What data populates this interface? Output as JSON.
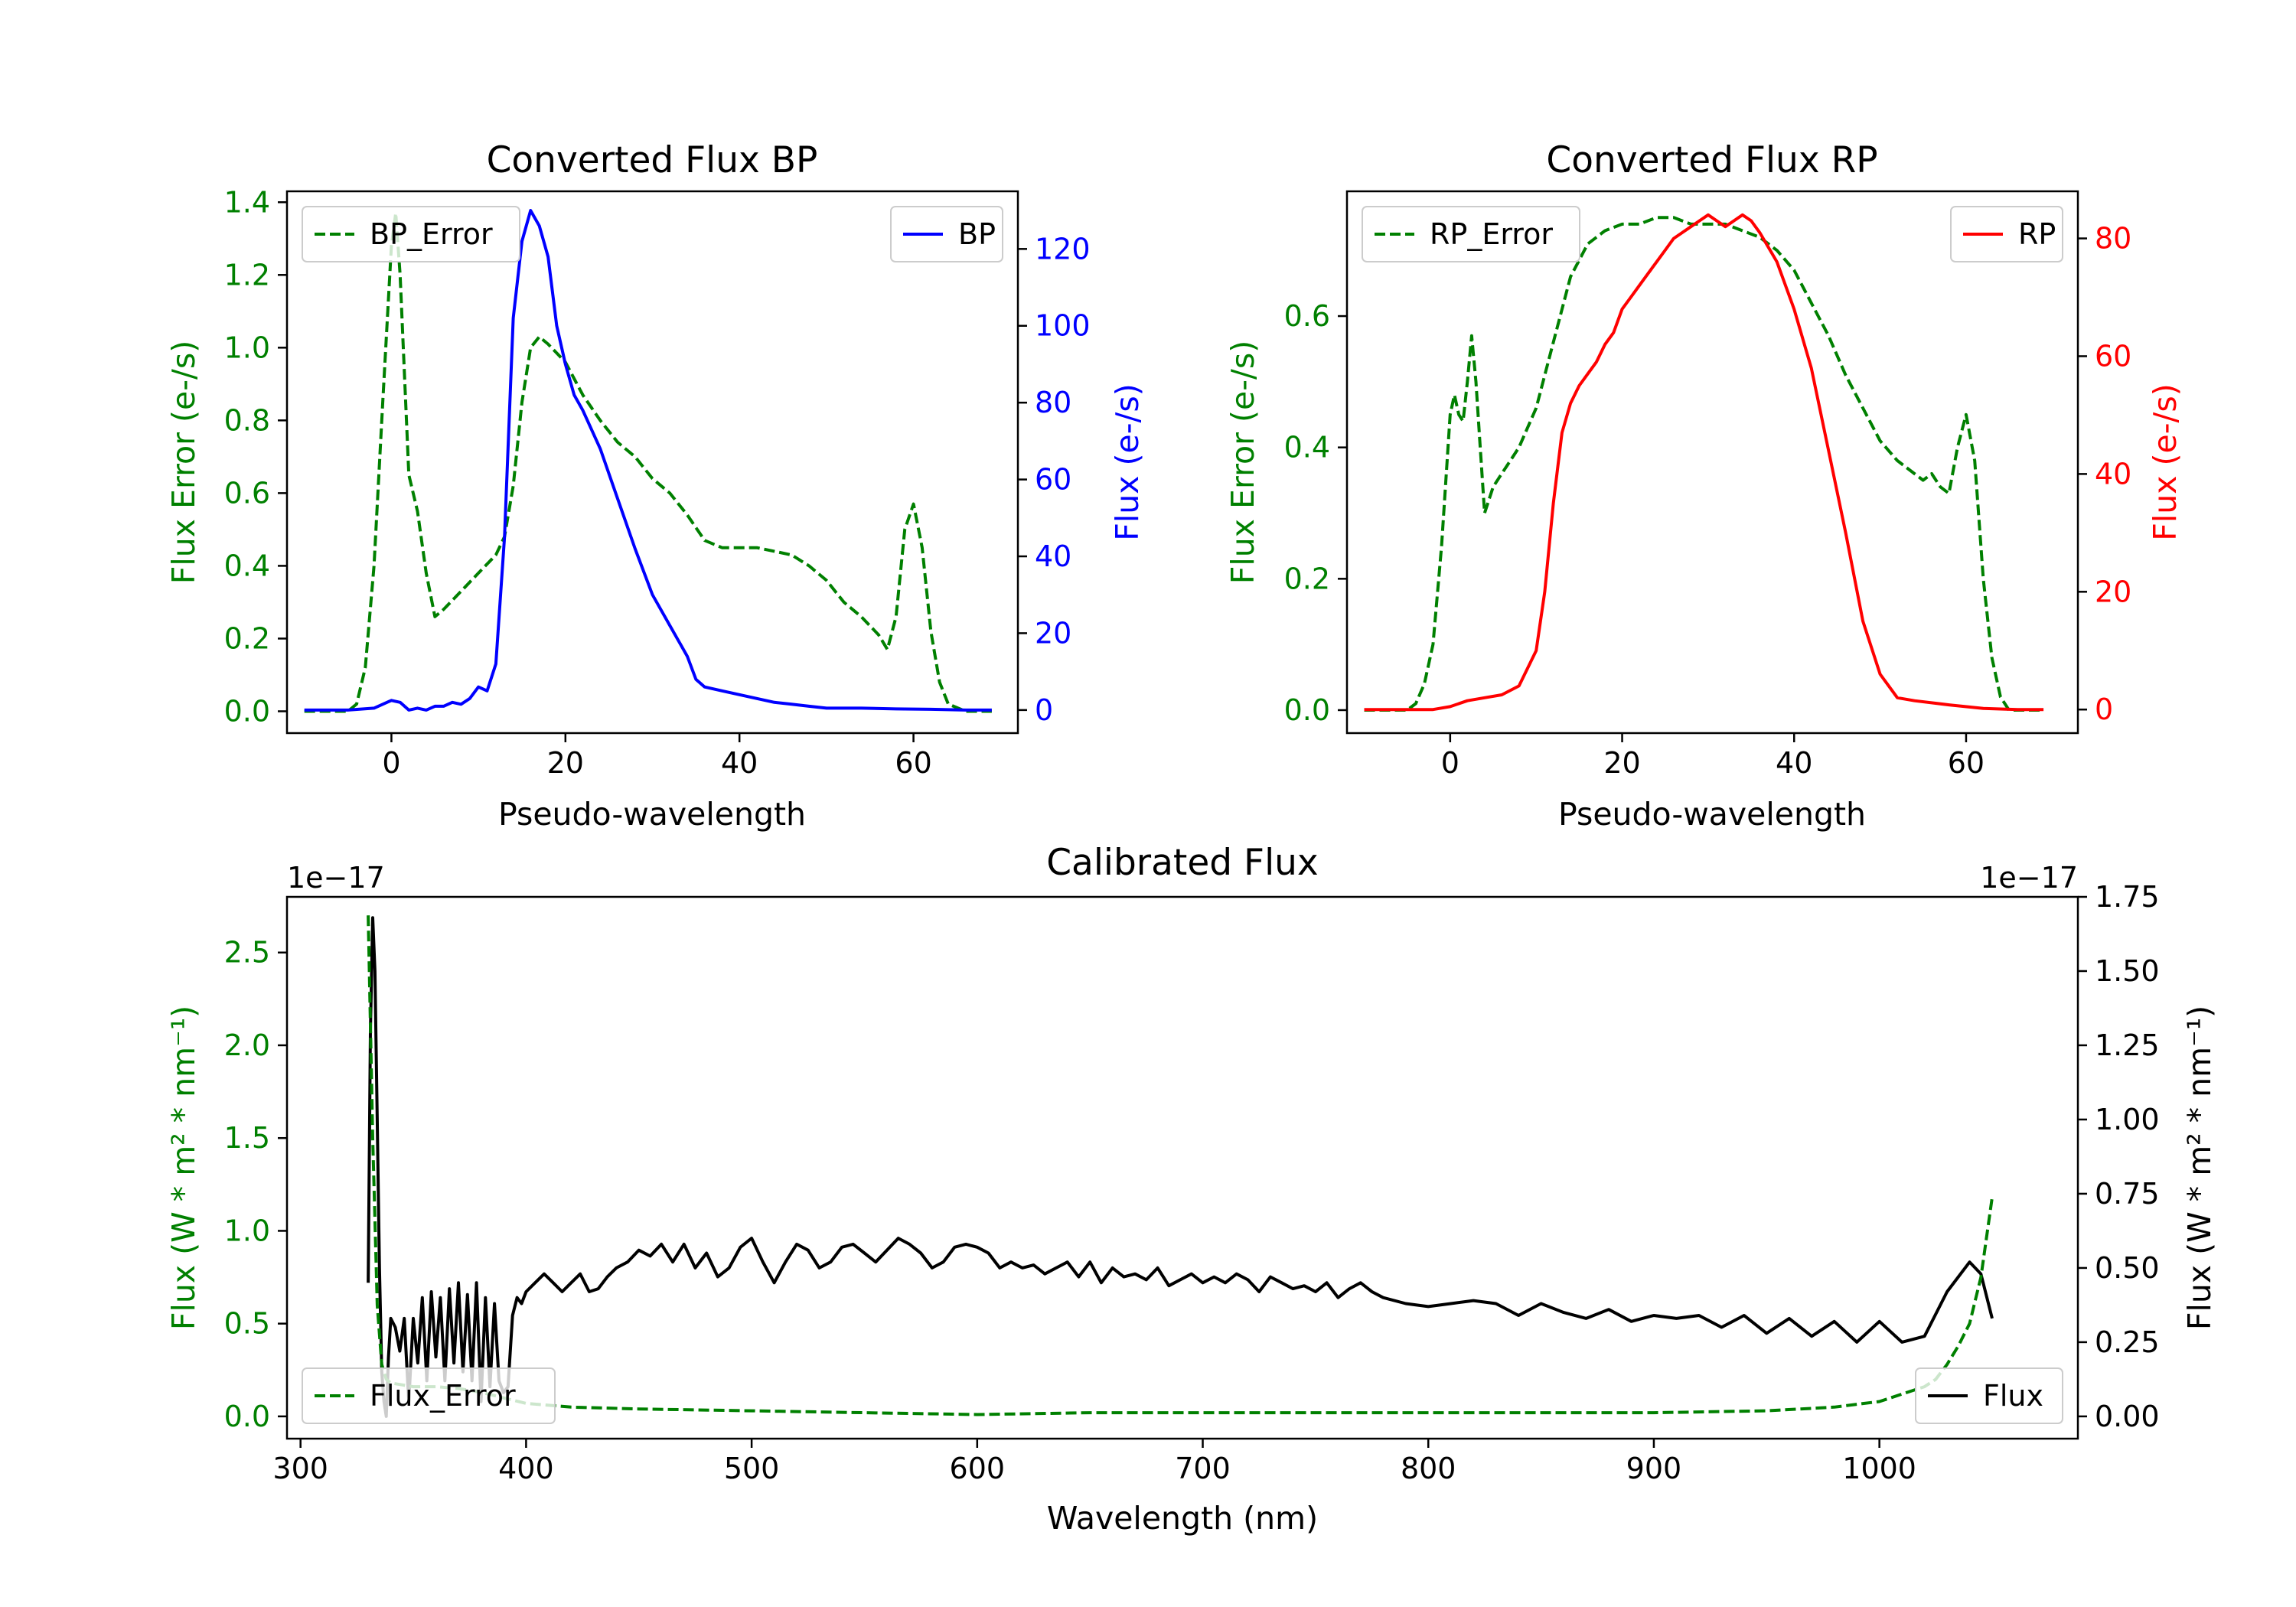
{
  "colors": {
    "green": "#008000",
    "blue": "#0000ff",
    "red": "#ff0000",
    "black": "#000000"
  },
  "chart_data": [
    {
      "id": "bp",
      "type": "line",
      "title": "Converted Flux BP",
      "xlabel": "Pseudo-wavelength",
      "ylabel_left": "Flux Error (e-/s)",
      "ylabel_right": "Flux (e-/s)",
      "xlim": [
        -12,
        72
      ],
      "ylim_left": [
        -0.06,
        1.43
      ],
      "ylim_right": [
        -6,
        135
      ],
      "xticks": [
        0,
        20,
        40,
        60
      ],
      "yticks_left": [
        0.0,
        0.2,
        0.4,
        0.6,
        0.8,
        1.0,
        1.2,
        1.4
      ],
      "yticks_right": [
        0,
        20,
        40,
        60,
        80,
        100,
        120
      ],
      "legend_left": "top-left",
      "legend_right": "top-right",
      "series": [
        {
          "name": "BP_Error",
          "axis": "left",
          "color": "green",
          "style": "dashed",
          "x": [
            -10,
            -5,
            -4,
            -3,
            -2,
            -1,
            0,
            0.5,
            1,
            2,
            3,
            4,
            5,
            6,
            8,
            10,
            12,
            13,
            14,
            15,
            16,
            17,
            18,
            20,
            22,
            24,
            26,
            28,
            30,
            32,
            34,
            36,
            38,
            40,
            42,
            44,
            46,
            48,
            50,
            52,
            54,
            56,
            57,
            58,
            59,
            60,
            61,
            62,
            63,
            64,
            66,
            69
          ],
          "y": [
            0,
            0,
            0.02,
            0.12,
            0.4,
            0.85,
            1.28,
            1.37,
            1.2,
            0.65,
            0.55,
            0.38,
            0.26,
            0.28,
            0.33,
            0.38,
            0.43,
            0.48,
            0.62,
            0.85,
            1.0,
            1.03,
            1.01,
            0.96,
            0.87,
            0.8,
            0.74,
            0.7,
            0.64,
            0.6,
            0.54,
            0.47,
            0.45,
            0.45,
            0.45,
            0.44,
            0.43,
            0.4,
            0.36,
            0.3,
            0.26,
            0.21,
            0.17,
            0.26,
            0.5,
            0.57,
            0.45,
            0.22,
            0.08,
            0.02,
            0,
            0
          ]
        },
        {
          "name": "BP",
          "axis": "right",
          "color": "blue",
          "style": "solid",
          "x": [
            -10,
            -5,
            -2,
            0,
            1,
            2,
            3,
            4,
            5,
            6,
            7,
            8,
            9,
            10,
            11,
            12,
            13,
            14,
            15,
            16,
            17,
            18,
            19,
            20,
            21,
            22,
            24,
            26,
            28,
            30,
            32,
            34,
            35,
            36,
            38,
            40,
            42,
            44,
            46,
            48,
            50,
            54,
            58,
            62,
            66,
            69
          ],
          "y": [
            0,
            0,
            0.5,
            2.5,
            2,
            0,
            0.5,
            0,
            1,
            1,
            2,
            1.5,
            3,
            6,
            5,
            12,
            45,
            102,
            122,
            130,
            126,
            118,
            100,
            90,
            82,
            78,
            68,
            55,
            42,
            30,
            22,
            14,
            8,
            6,
            5,
            4,
            3,
            2,
            1.5,
            1,
            0.5,
            0.5,
            0.3,
            0.2,
            0,
            0
          ]
        }
      ]
    },
    {
      "id": "rp",
      "type": "line",
      "title": "Converted Flux RP",
      "xlabel": "Pseudo-wavelength",
      "ylabel_left": "Flux Error (e-/s)",
      "ylabel_right": "Flux (e-/s)",
      "xlim": [
        -12,
        73
      ],
      "ylim_left": [
        -0.035,
        0.79
      ],
      "ylim_right": [
        -4,
        88
      ],
      "xticks": [
        0,
        20,
        40,
        60
      ],
      "yticks_left": [
        0.0,
        0.2,
        0.4,
        0.6
      ],
      "yticks_right": [
        0,
        20,
        40,
        60,
        80
      ],
      "legend_left": "top-left",
      "legend_right": "top-right",
      "series": [
        {
          "name": "RP_Error",
          "axis": "left",
          "color": "green",
          "style": "dashed",
          "x": [
            -10,
            -5,
            -4,
            -3,
            -2,
            -1,
            0,
            0.5,
            1,
            1.5,
            2,
            2.5,
            3,
            3.5,
            4,
            5,
            6,
            7,
            8,
            10,
            12,
            14,
            16,
            18,
            20,
            22,
            24,
            26,
            28,
            30,
            32,
            34,
            36,
            38,
            40,
            42,
            44,
            46,
            48,
            50,
            52,
            54,
            55,
            56,
            57,
            58,
            59,
            60,
            61,
            62,
            63,
            64,
            65,
            69
          ],
          "y": [
            0,
            0,
            0.01,
            0.04,
            0.1,
            0.25,
            0.45,
            0.48,
            0.45,
            0.44,
            0.5,
            0.57,
            0.5,
            0.4,
            0.3,
            0.34,
            0.36,
            0.38,
            0.4,
            0.46,
            0.56,
            0.66,
            0.71,
            0.73,
            0.74,
            0.74,
            0.75,
            0.75,
            0.74,
            0.74,
            0.74,
            0.73,
            0.72,
            0.7,
            0.67,
            0.62,
            0.57,
            0.51,
            0.46,
            0.41,
            0.38,
            0.36,
            0.35,
            0.36,
            0.34,
            0.33,
            0.4,
            0.45,
            0.38,
            0.2,
            0.08,
            0.02,
            0,
            0
          ]
        },
        {
          "name": "RP",
          "axis": "right",
          "color": "red",
          "style": "solid",
          "x": [
            -10,
            -5,
            -2,
            0,
            2,
            4,
            6,
            8,
            10,
            11,
            12,
            13,
            14,
            15,
            16,
            17,
            18,
            19,
            20,
            21,
            22,
            23,
            24,
            25,
            26,
            27,
            28,
            29,
            30,
            31,
            32,
            33,
            34,
            35,
            36,
            38,
            40,
            42,
            44,
            46,
            48,
            50,
            52,
            54,
            58,
            62,
            66,
            69
          ],
          "y": [
            0,
            0,
            0,
            0.5,
            1.5,
            2,
            2.5,
            4,
            10,
            20,
            35,
            47,
            52,
            55,
            57,
            59,
            62,
            64,
            68,
            70,
            72,
            74,
            76,
            78,
            80,
            81,
            82,
            83,
            84,
            83,
            82,
            83,
            84,
            83,
            81,
            76,
            68,
            58,
            44,
            30,
            15,
            6,
            2,
            1.5,
            0.8,
            0.2,
            0,
            0
          ]
        }
      ]
    },
    {
      "id": "cal",
      "type": "line",
      "title": "Calibrated Flux",
      "xlabel": "Wavelength (nm)",
      "ylabel_left": "Flux (W * m² * nm⁻¹)",
      "ylabel_right": "Flux (W * m² * nm⁻¹)",
      "offset_left": "1e−17",
      "offset_right": "1e−17",
      "xlim": [
        294,
        1088
      ],
      "ylim_left": [
        -0.12,
        2.8
      ],
      "ylim_right": [
        -0.075,
        1.75
      ],
      "xticks": [
        300,
        400,
        500,
        600,
        700,
        800,
        900,
        1000
      ],
      "yticks_left": [
        0.0,
        0.5,
        1.0,
        1.5,
        2.0,
        2.5
      ],
      "yticks_right": [
        0.0,
        0.25,
        0.5,
        0.75,
        1.0,
        1.25,
        1.5,
        1.75
      ],
      "legend_left": "bottom-left",
      "legend_right": "bottom-right",
      "series": [
        {
          "name": "Flux",
          "axis": "right",
          "color": "black",
          "style": "solid",
          "x": [
            330,
            331,
            332,
            333,
            334,
            335,
            336,
            337,
            338,
            339,
            340,
            342,
            344,
            346,
            348,
            350,
            352,
            354,
            356,
            358,
            360,
            362,
            364,
            366,
            368,
            370,
            372,
            374,
            376,
            378,
            380,
            382,
            384,
            386,
            388,
            390,
            392,
            394,
            396,
            398,
            400,
            404,
            408,
            412,
            416,
            420,
            424,
            428,
            432,
            436,
            440,
            445,
            450,
            455,
            460,
            465,
            470,
            475,
            480,
            485,
            490,
            495,
            500,
            505,
            510,
            515,
            520,
            525,
            530,
            535,
            540,
            545,
            550,
            555,
            560,
            565,
            570,
            575,
            580,
            585,
            590,
            595,
            600,
            605,
            610,
            615,
            620,
            625,
            630,
            635,
            640,
            645,
            650,
            655,
            660,
            665,
            670,
            675,
            680,
            685,
            690,
            695,
            700,
            705,
            710,
            715,
            720,
            725,
            730,
            735,
            740,
            745,
            750,
            755,
            760,
            765,
            770,
            775,
            780,
            790,
            800,
            810,
            820,
            830,
            840,
            850,
            860,
            870,
            880,
            890,
            900,
            910,
            920,
            930,
            940,
            950,
            960,
            970,
            980,
            990,
            1000,
            1010,
            1020,
            1030,
            1040,
            1045,
            1050
          ],
          "y": [
            0.45,
            1.3,
            1.68,
            1.5,
            1.0,
            0.5,
            0.15,
            0.05,
            0.0,
            0.2,
            0.33,
            0.3,
            0.22,
            0.33,
            0.05,
            0.33,
            0.18,
            0.4,
            0.12,
            0.42,
            0.2,
            0.4,
            0.12,
            0.43,
            0.18,
            0.45,
            0.15,
            0.41,
            0.12,
            0.45,
            0.05,
            0.4,
            0.1,
            0.38,
            0.12,
            0.08,
            0.1,
            0.34,
            0.4,
            0.38,
            0.42,
            0.45,
            0.48,
            0.45,
            0.42,
            0.45,
            0.48,
            0.42,
            0.43,
            0.47,
            0.5,
            0.52,
            0.56,
            0.54,
            0.58,
            0.52,
            0.58,
            0.5,
            0.55,
            0.47,
            0.5,
            0.57,
            0.6,
            0.52,
            0.45,
            0.52,
            0.58,
            0.56,
            0.5,
            0.52,
            0.57,
            0.58,
            0.55,
            0.52,
            0.56,
            0.6,
            0.58,
            0.55,
            0.5,
            0.52,
            0.57,
            0.58,
            0.57,
            0.55,
            0.5,
            0.52,
            0.5,
            0.51,
            0.48,
            0.5,
            0.52,
            0.47,
            0.52,
            0.45,
            0.5,
            0.47,
            0.48,
            0.46,
            0.5,
            0.44,
            0.46,
            0.48,
            0.45,
            0.47,
            0.45,
            0.48,
            0.46,
            0.42,
            0.47,
            0.45,
            0.43,
            0.44,
            0.42,
            0.45,
            0.4,
            0.43,
            0.45,
            0.42,
            0.4,
            0.38,
            0.37,
            0.38,
            0.39,
            0.38,
            0.34,
            0.38,
            0.35,
            0.33,
            0.36,
            0.32,
            0.34,
            0.33,
            0.34,
            0.3,
            0.34,
            0.28,
            0.33,
            0.27,
            0.32,
            0.25,
            0.32,
            0.25,
            0.27,
            0.42,
            0.52,
            0.48,
            0.33
          ]
        },
        {
          "name": "Flux_Error",
          "axis": "left",
          "color": "green",
          "style": "dashed",
          "x": [
            330,
            332,
            334,
            336,
            338,
            340,
            345,
            350,
            360,
            370,
            380,
            390,
            400,
            420,
            450,
            500,
            550,
            600,
            650,
            700,
            750,
            800,
            850,
            900,
            950,
            980,
            1000,
            1010,
            1020,
            1025,
            1030,
            1035,
            1040,
            1045,
            1050
          ],
          "y": [
            2.7,
            1.5,
            0.6,
            0.28,
            0.2,
            0.18,
            0.17,
            0.16,
            0.16,
            0.15,
            0.13,
            0.1,
            0.07,
            0.05,
            0.04,
            0.03,
            0.02,
            0.01,
            0.02,
            0.02,
            0.02,
            0.02,
            0.02,
            0.02,
            0.03,
            0.05,
            0.08,
            0.12,
            0.16,
            0.2,
            0.28,
            0.38,
            0.5,
            0.75,
            1.18
          ]
        }
      ]
    }
  ]
}
